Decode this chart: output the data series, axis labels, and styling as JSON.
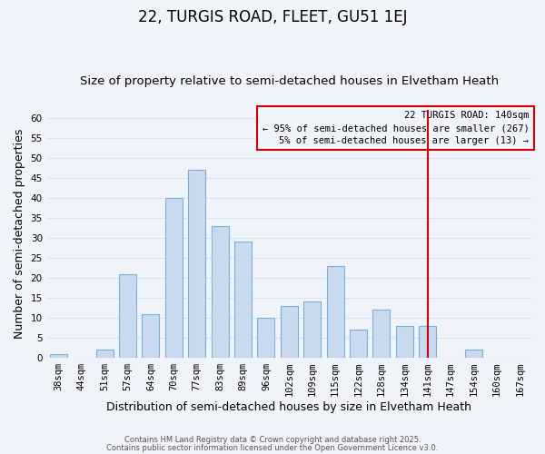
{
  "title": "22, TURGIS ROAD, FLEET, GU51 1EJ",
  "subtitle": "Size of property relative to semi-detached houses in Elvetham Heath",
  "xlabel": "Distribution of semi-detached houses by size in Elvetham Heath",
  "ylabel": "Number of semi-detached properties",
  "footnote1": "Contains HM Land Registry data © Crown copyright and database right 2025.",
  "footnote2": "Contains public sector information licensed under the Open Government Licence v3.0.",
  "bar_labels": [
    "38sqm",
    "44sqm",
    "51sqm",
    "57sqm",
    "64sqm",
    "70sqm",
    "77sqm",
    "83sqm",
    "89sqm",
    "96sqm",
    "102sqm",
    "109sqm",
    "115sqm",
    "122sqm",
    "128sqm",
    "134sqm",
    "141sqm",
    "147sqm",
    "154sqm",
    "160sqm",
    "167sqm"
  ],
  "bar_values": [
    1,
    0,
    2,
    21,
    11,
    40,
    47,
    33,
    29,
    10,
    13,
    14,
    23,
    7,
    12,
    8,
    8,
    0,
    2,
    0,
    0
  ],
  "bar_color": "#c8d9f0",
  "bar_edge_color": "#7bafd4",
  "vline_x": 16,
  "vline_color": "#cc0000",
  "ylim": [
    0,
    62
  ],
  "yticks": [
    0,
    5,
    10,
    15,
    20,
    25,
    30,
    35,
    40,
    45,
    50,
    55,
    60
  ],
  "bg_color": "#f0f4fa",
  "grid_color": "#d8e4f0",
  "annotation_title": "22 TURGIS ROAD: 140sqm",
  "annotation_line1": "← 95% of semi-detached houses are smaller (267)",
  "annotation_line2": "5% of semi-detached houses are larger (13) →",
  "annotation_box_color": "#cc0000",
  "title_fontsize": 12,
  "subtitle_fontsize": 9.5,
  "axis_label_fontsize": 9,
  "tick_fontsize": 7.5,
  "annot_fontsize": 7.5
}
